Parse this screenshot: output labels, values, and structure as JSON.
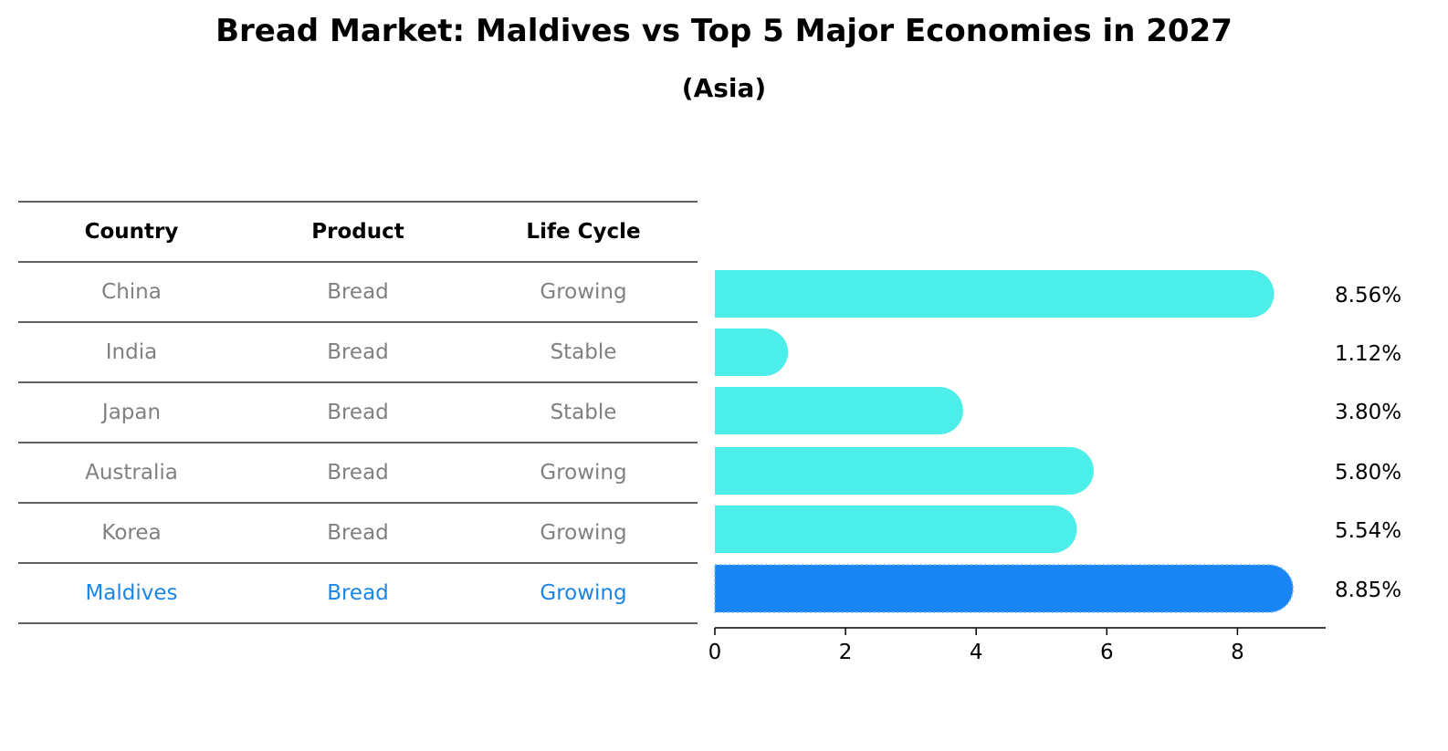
{
  "title": "Bread Market: Maldives vs Top 5 Major Economies in 2027",
  "subtitle": "(Asia)",
  "table": {
    "headers": [
      "Country",
      "Product",
      "Life Cycle"
    ],
    "rows": [
      {
        "country": "China",
        "product": "Bread",
        "life_cycle": "Growing"
      },
      {
        "country": "India",
        "product": "Bread",
        "life_cycle": "Stable"
      },
      {
        "country": "Japan",
        "product": "Bread",
        "life_cycle": "Stable"
      },
      {
        "country": "Australia",
        "product": "Bread",
        "life_cycle": "Growing"
      },
      {
        "country": "Korea",
        "product": "Bread",
        "life_cycle": "Growing"
      },
      {
        "country": "Maldives",
        "product": "Bread",
        "life_cycle": "Growing"
      }
    ],
    "highlight_row": "Maldives"
  },
  "colors": {
    "bar": "#4ceee9",
    "highlight_bar": "#1985f5",
    "text_muted": "#808080",
    "text_highlight": "#1a85e8"
  },
  "chart_data": {
    "type": "bar",
    "orientation": "horizontal",
    "categories": [
      "China",
      "India",
      "Japan",
      "Australia",
      "Korea",
      "Maldives"
    ],
    "values": [
      8.56,
      1.12,
      3.8,
      5.8,
      5.54,
      8.85
    ],
    "value_labels": [
      "8.56%",
      "1.12%",
      "3.80%",
      "5.80%",
      "5.54%",
      "8.85%"
    ],
    "xlim": [
      0,
      9.35
    ],
    "xticks": [
      0,
      2,
      4,
      6,
      8
    ],
    "title": "Bread Market: Maldives vs Top 5 Major Economies in 2027",
    "subtitle": "(Asia)",
    "grid": false,
    "legend": "none"
  }
}
